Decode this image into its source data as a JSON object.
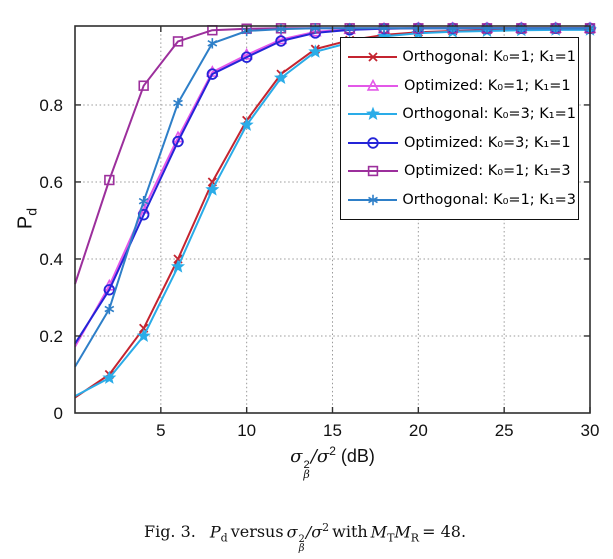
{
  "page": {
    "background": "#ffffff"
  },
  "chart_data": {
    "type": "line",
    "title": "",
    "xlabel": {
      "sigma": "σ",
      "sup": "2",
      "sub": "β",
      "slash_sigma": "/σ",
      "sup2": "2",
      "unit": "(dB)"
    },
    "ylabel": {
      "main": "P",
      "sub": "d"
    },
    "xlim": [
      0,
      30
    ],
    "ylim": [
      0,
      1.005
    ],
    "xticks": [
      5,
      10,
      15,
      20,
      25,
      30
    ],
    "yticks": [
      0,
      0.2,
      0.4,
      0.6,
      0.8
    ],
    "grid": true,
    "legend_position": "upper-right-inside",
    "frame_color": "#2f2f2f",
    "grid_color": "#9a9a9a",
    "x": [
      0,
      2,
      4,
      6,
      8,
      10,
      12,
      14,
      16,
      18,
      20,
      22,
      24,
      26,
      28,
      30
    ],
    "series": [
      {
        "name": "Orthogonal: K₀=1; K₁=1",
        "color": "#c42430",
        "marker": "x",
        "values": [
          0.04,
          0.1,
          0.22,
          0.4,
          0.6,
          0.76,
          0.88,
          0.945,
          0.968,
          0.982,
          0.989,
          0.992,
          0.994,
          0.995,
          0.996,
          0.996
        ]
      },
      {
        "name": "Optimized: K₀=1; K₁=1",
        "color": "#e358e8",
        "marker": "triangle",
        "values": [
          0.172,
          0.33,
          0.53,
          0.715,
          0.885,
          0.93,
          0.97,
          0.99,
          0.996,
          0.998,
          0.999,
          0.999,
          0.999,
          0.999,
          0.999,
          0.999
        ]
      },
      {
        "name": "Orthogonal: K₀=3; K₁=1",
        "color": "#2aace8",
        "marker": "star",
        "values": [
          0.044,
          0.091,
          0.2,
          0.38,
          0.58,
          0.748,
          0.87,
          0.938,
          0.962,
          0.978,
          0.986,
          0.99,
          0.992,
          0.994,
          0.995,
          0.995
        ]
      },
      {
        "name": "Optimized: K₀=3; K₁=1",
        "color": "#2424d8",
        "marker": "circle",
        "values": [
          0.18,
          0.32,
          0.515,
          0.705,
          0.88,
          0.924,
          0.966,
          0.987,
          0.995,
          0.998,
          0.999,
          0.999,
          0.999,
          0.999,
          0.999,
          0.999
        ]
      },
      {
        "name": "Optimized: K₀=1; K₁=3",
        "color": "#9c2f9c",
        "marker": "square",
        "values": [
          0.335,
          0.605,
          0.85,
          0.965,
          0.994,
          0.998,
          0.999,
          0.999,
          0.999,
          0.999,
          0.999,
          0.999,
          0.999,
          0.999,
          0.999,
          0.999
        ]
      },
      {
        "name": "Orthogonal: K₀=1; K₁=3",
        "color": "#2e7fc8",
        "marker": "asterisk",
        "values": [
          0.12,
          0.27,
          0.55,
          0.805,
          0.96,
          0.992,
          0.997,
          0.999,
          0.999,
          0.999,
          0.999,
          0.999,
          0.999,
          0.999,
          0.999,
          0.999
        ]
      }
    ]
  },
  "caption": {
    "fig_label": "Fig. 3.",
    "pd_main": "P",
    "pd_sub": "d",
    "versus": "versus",
    "sigma": "σ",
    "sigma_sup": "2",
    "sigma_sub": "β",
    "slash_sigma": "/σ",
    "slash_sigma_sup": "2",
    "with_word": "with",
    "m_t": "M",
    "m_t_sub": "T",
    "m_r": "M",
    "m_r_sub": "R",
    "equals_value": "= 48."
  }
}
